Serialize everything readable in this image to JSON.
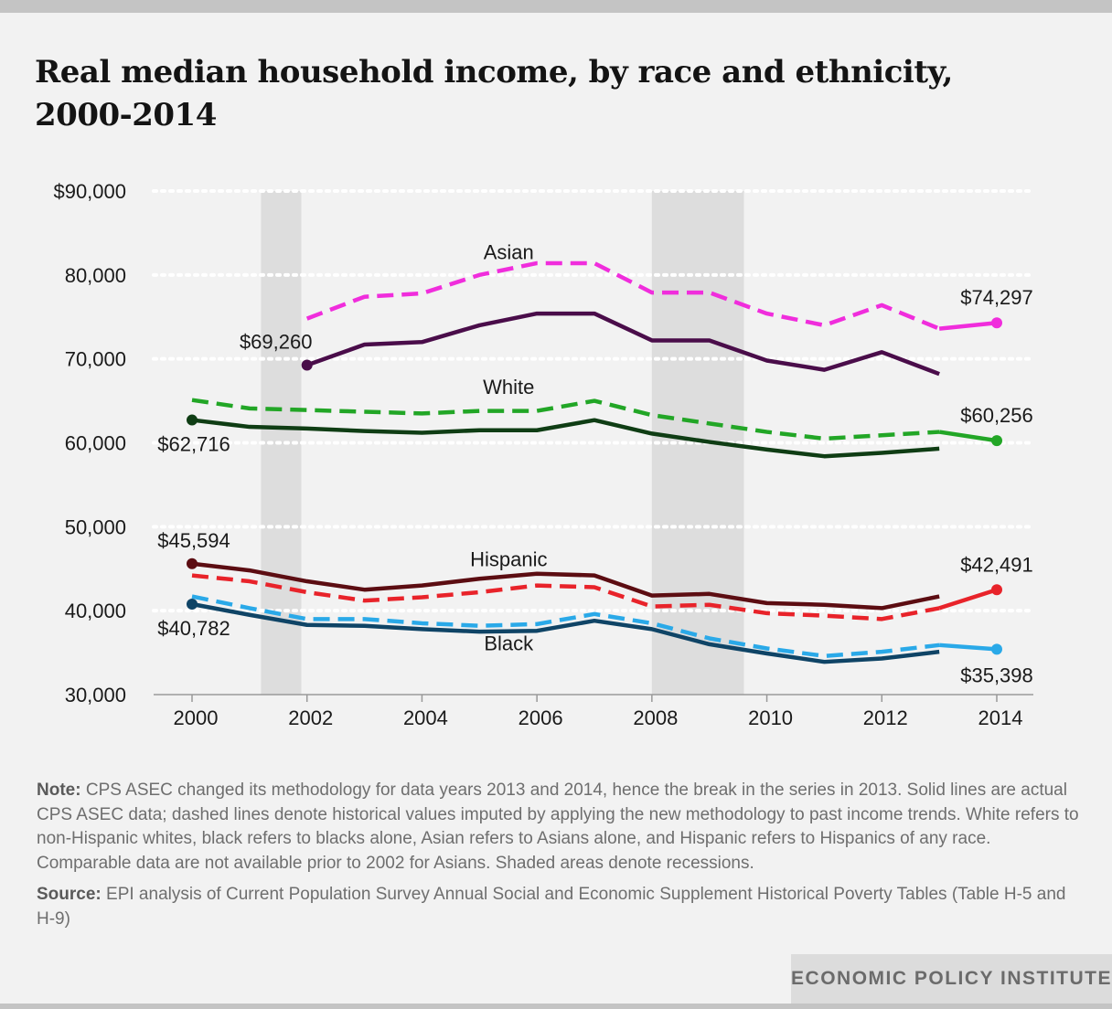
{
  "title": "Real median household income, by race and ethnicity, 2000-2014",
  "note_label": "Note:",
  "note_text": "CPS ASEC changed its methodology for data years 2013 and 2014, hence the break in the series in 2013. Solid lines are actual CPS ASEC data; dashed lines denote historical values imputed by applying the new methodology to past income trends. White refers to non-Hispanic whites, black refers to blacks alone, Asian refers to Asians alone, and Hispanic refers to Hispanics of any race. Comparable data are not available prior to 2002 for Asians. Shaded areas denote recessions.",
  "source_label": "Source:",
  "source_text": "EPI analysis of Current Population Survey Annual Social and Economic Supplement Historical Poverty Tables (Table H-5 and H-9)",
  "brand": "ECONOMIC POLICY INSTITUTE",
  "chart_data": {
    "type": "line",
    "x_range": [
      2000,
      2014
    ],
    "ylim": [
      30000,
      90000
    ],
    "y_ticks": [
      {
        "value": 90000,
        "label": "$90,000"
      },
      {
        "value": 80000,
        "label": "80,000"
      },
      {
        "value": 70000,
        "label": "70,000"
      },
      {
        "value": 60000,
        "label": "60,000"
      },
      {
        "value": 50000,
        "label": "50,000"
      },
      {
        "value": 40000,
        "label": "40,000"
      },
      {
        "value": 30000,
        "label": "30,000"
      }
    ],
    "x_ticks": [
      2000,
      2002,
      2004,
      2006,
      2008,
      2010,
      2012,
      2014
    ],
    "grid": "dotted horizontal",
    "recessions": [
      [
        2001.2,
        2001.9
      ],
      [
        2008.0,
        2009.6
      ]
    ],
    "group_labels": [
      {
        "text": "Asian",
        "x": 2005.0,
        "y": 81900
      },
      {
        "text": "White",
        "x": 2005.0,
        "y": 65800
      },
      {
        "text": "Hispanic",
        "x": 2005.0,
        "y": 45300
      },
      {
        "text": "Black",
        "x": 2005.0,
        "y": 35300
      }
    ],
    "series": [
      {
        "style": "dashed",
        "color": "#f02ddc",
        "x": [
          2002,
          2003,
          2004,
          2005,
          2006,
          2007,
          2008,
          2009,
          2010,
          2011,
          2012,
          2013
        ],
        "values": [
          74800,
          77400,
          77800,
          80000,
          81400,
          81400,
          77900,
          77900,
          75400,
          74000,
          76400,
          73600
        ]
      },
      {
        "style": "solid",
        "color": "#f02ddc",
        "x": [
          2013,
          2014
        ],
        "values": [
          73600,
          74297
        ]
      },
      {
        "style": "solid",
        "color": "#4a0d4a",
        "x": [
          2002,
          2003,
          2004,
          2005,
          2006,
          2007,
          2008,
          2009,
          2010,
          2011,
          2012,
          2013
        ],
        "values": [
          69260,
          71700,
          72000,
          74000,
          75400,
          75400,
          72200,
          72200,
          69800,
          68700,
          70800,
          68200
        ]
      },
      {
        "style": "dashed",
        "color": "#22a626",
        "x": [
          2000,
          2001,
          2002,
          2003,
          2004,
          2005,
          2006,
          2007,
          2008,
          2009,
          2010,
          2011,
          2012,
          2013
        ],
        "values": [
          65100,
          64100,
          63900,
          63700,
          63500,
          63800,
          63800,
          65000,
          63300,
          62300,
          61300,
          60500,
          60900,
          61300
        ]
      },
      {
        "style": "solid",
        "color": "#22a626",
        "x": [
          2013,
          2014
        ],
        "values": [
          61300,
          60256
        ]
      },
      {
        "style": "solid",
        "color": "#0f3d14",
        "x": [
          2000,
          2001,
          2002,
          2003,
          2004,
          2005,
          2006,
          2007,
          2008,
          2009,
          2010,
          2011,
          2012,
          2013
        ],
        "values": [
          62716,
          61900,
          61700,
          61400,
          61200,
          61500,
          61500,
          62700,
          61100,
          60100,
          59200,
          58400,
          58800,
          59300
        ]
      },
      {
        "style": "dashed",
        "color": "#e8232a",
        "x": [
          2000,
          2001,
          2002,
          2003,
          2004,
          2005,
          2006,
          2007,
          2008,
          2009,
          2010,
          2011,
          2012,
          2013
        ],
        "values": [
          44200,
          43500,
          42200,
          41200,
          41600,
          42200,
          43000,
          42800,
          40500,
          40700,
          39700,
          39400,
          39000,
          40300
        ]
      },
      {
        "style": "solid",
        "color": "#e8232a",
        "x": [
          2013,
          2014
        ],
        "values": [
          40300,
          42491
        ]
      },
      {
        "style": "solid",
        "color": "#5c0d12",
        "x": [
          2000,
          2001,
          2002,
          2003,
          2004,
          2005,
          2006,
          2007,
          2008,
          2009,
          2010,
          2011,
          2012,
          2013
        ],
        "values": [
          45594,
          44800,
          43500,
          42500,
          43000,
          43800,
          44400,
          44200,
          41800,
          42000,
          40900,
          40700,
          40300,
          41700
        ]
      },
      {
        "style": "dashed",
        "color": "#2aa9e8",
        "x": [
          2000,
          2001,
          2002,
          2003,
          2004,
          2005,
          2006,
          2007,
          2008,
          2009,
          2010,
          2011,
          2012,
          2013
        ],
        "values": [
          41700,
          40300,
          39000,
          39000,
          38500,
          38200,
          38400,
          39600,
          38500,
          36700,
          35500,
          34600,
          35100,
          35900
        ]
      },
      {
        "style": "solid",
        "color": "#2aa9e8",
        "x": [
          2013,
          2014
        ],
        "values": [
          35900,
          35398
        ]
      },
      {
        "style": "solid",
        "color": "#0f4466",
        "x": [
          2000,
          2001,
          2002,
          2003,
          2004,
          2005,
          2006,
          2007,
          2008,
          2009,
          2010,
          2011,
          2012,
          2013
        ],
        "values": [
          40782,
          39500,
          38300,
          38200,
          37800,
          37500,
          37600,
          38800,
          37800,
          36000,
          34900,
          33900,
          34300,
          35100
        ]
      }
    ],
    "annotations": [
      {
        "text": "$69,260",
        "x": 2002,
        "y": 69260,
        "color": "#4a0d4a",
        "dx": -34,
        "dy": -18
      },
      {
        "text": "$74,297",
        "x": 2014,
        "y": 74297,
        "color": "#f02ddc",
        "dx": 0,
        "dy": -20
      },
      {
        "text": "$62,716",
        "x": 2000,
        "y": 62716,
        "color": "#0f3d14",
        "dx": 2,
        "dy": 34
      },
      {
        "text": "$60,256",
        "x": 2014,
        "y": 60256,
        "color": "#22a626",
        "dx": 0,
        "dy": -20
      },
      {
        "text": "$45,594",
        "x": 2000,
        "y": 45594,
        "color": "#5c0d12",
        "dx": 2,
        "dy": -18
      },
      {
        "text": "$42,491",
        "x": 2014,
        "y": 42491,
        "color": "#e8232a",
        "dx": 0,
        "dy": -20
      },
      {
        "text": "$40,782",
        "x": 2000,
        "y": 40782,
        "color": "#0f4466",
        "dx": 2,
        "dy": 34
      },
      {
        "text": "$35,398",
        "x": 2014,
        "y": 35398,
        "color": "#2aa9e8",
        "dx": 0,
        "dy": 36
      }
    ]
  }
}
